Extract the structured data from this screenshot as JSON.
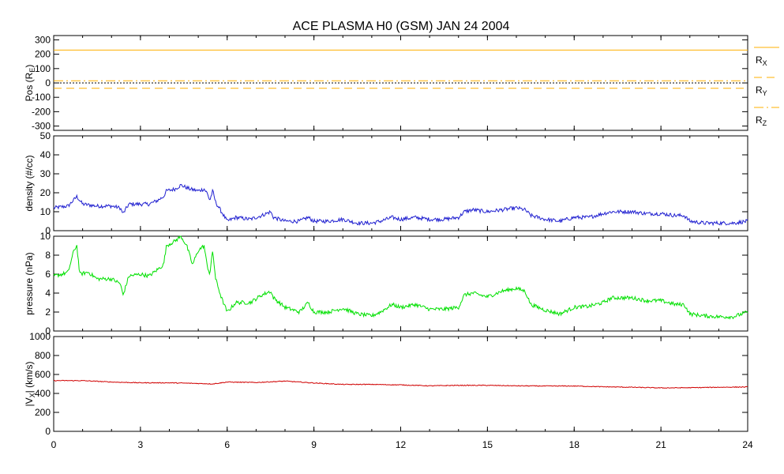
{
  "chart_data": {
    "title": "ACE PLASMA H0 (GSM)   JAN 24 2004",
    "x_axis": {
      "range": [
        0,
        24
      ],
      "ticks": [
        0,
        3,
        6,
        9,
        12,
        15,
        18,
        21,
        24
      ],
      "tick_labels": [
        "0",
        "3",
        "6",
        "9",
        "12",
        "15",
        "18",
        "21",
        "24"
      ]
    },
    "panels": [
      {
        "id": "pos",
        "type": "line",
        "ylabel": "Pos (R<sub>E</sub>)",
        "ylabel_main": "Pos (R",
        "ylabel_sub": "E",
        "ylabel_tail": ")",
        "ylim": [
          -330,
          330
        ],
        "yticks": [
          -300,
          -200,
          -100,
          0,
          100,
          200,
          300
        ],
        "ytick_labels": [
          "-300",
          "-200",
          "-100",
          "0",
          "100",
          "200",
          "300"
        ],
        "zero_line": true,
        "series": [
          {
            "name": "R_X",
            "label_main": "R",
            "label_sub": "X",
            "color": "#ffb000",
            "style": "solid",
            "values": [
              [
                0,
                229
              ],
              [
                24,
                229
              ]
            ]
          },
          {
            "name": "R_Y",
            "label_main": "R",
            "label_sub": "Y",
            "color": "#ffb000",
            "style": "dashed",
            "values": [
              [
                0,
                -37
              ],
              [
                24,
                -37
              ]
            ]
          },
          {
            "name": "R_Z",
            "label_main": "R",
            "label_sub": "Z",
            "color": "#ffb000",
            "style": "dashdot",
            "values": [
              [
                0,
                15
              ],
              [
                24,
                15
              ]
            ]
          }
        ]
      },
      {
        "id": "density",
        "type": "line",
        "ylabel": "density (#/cc)",
        "ylim": [
          0,
          50
        ],
        "yticks": [
          0,
          10,
          20,
          30,
          40,
          50
        ],
        "ytick_labels": [
          "0",
          "10",
          "20",
          "30",
          "40",
          "50"
        ],
        "series": [
          {
            "color": "#2020d0",
            "values": [
              [
                0,
                12
              ],
              [
                0.5,
                13
              ],
              [
                0.8,
                18
              ],
              [
                1.0,
                14
              ],
              [
                1.5,
                13
              ],
              [
                2.0,
                13
              ],
              [
                2.3,
                12
              ],
              [
                2.4,
                9
              ],
              [
                2.6,
                14
              ],
              [
                3.0,
                14
              ],
              [
                3.3,
                14
              ],
              [
                3.6,
                16
              ],
              [
                3.8,
                18
              ],
              [
                3.9,
                21
              ],
              [
                4.2,
                22
              ],
              [
                4.4,
                24
              ],
              [
                4.7,
                22
              ],
              [
                5.0,
                21
              ],
              [
                5.2,
                22
              ],
              [
                5.3,
                20
              ],
              [
                5.4,
                16
              ],
              [
                5.5,
                21
              ],
              [
                5.6,
                15
              ],
              [
                5.8,
                10
              ],
              [
                6.0,
                5
              ],
              [
                6.3,
                7
              ],
              [
                6.8,
                6
              ],
              [
                7.2,
                8
              ],
              [
                7.5,
                10
              ],
              [
                7.6,
                7
              ],
              [
                8.0,
                5
              ],
              [
                8.5,
                5
              ],
              [
                8.8,
                7
              ],
              [
                9.0,
                5
              ],
              [
                9.5,
                5
              ],
              [
                10.0,
                6
              ],
              [
                10.5,
                4
              ],
              [
                11.0,
                4
              ],
              [
                11.3,
                5
              ],
              [
                11.7,
                7
              ],
              [
                12.0,
                6
              ],
              [
                12.5,
                7
              ],
              [
                13.0,
                6
              ],
              [
                13.5,
                6
              ],
              [
                14.0,
                7
              ],
              [
                14.2,
                10
              ],
              [
                14.5,
                11
              ],
              [
                15.0,
                10
              ],
              [
                15.5,
                11
              ],
              [
                16.0,
                12
              ],
              [
                16.3,
                11
              ],
              [
                16.5,
                8
              ],
              [
                17.0,
                6
              ],
              [
                17.5,
                5
              ],
              [
                18.0,
                7
              ],
              [
                18.5,
                7
              ],
              [
                19.0,
                9
              ],
              [
                19.3,
                10
              ],
              [
                20.0,
                10
              ],
              [
                20.5,
                9
              ],
              [
                21.0,
                9
              ],
              [
                21.5,
                8
              ],
              [
                21.8,
                8
              ],
              [
                22.0,
                5
              ],
              [
                22.5,
                4
              ],
              [
                23.0,
                4
              ],
              [
                23.5,
                4
              ],
              [
                24,
                5
              ]
            ]
          }
        ]
      },
      {
        "id": "pressure",
        "type": "line",
        "ylabel": "pressure (nPa)",
        "ylim": [
          0,
          10
        ],
        "yticks": [
          0,
          2,
          4,
          6,
          8,
          10
        ],
        "ytick_labels": [
          "0",
          "2",
          "4",
          "6",
          "8",
          "10"
        ],
        "series": [
          {
            "color": "#00e000",
            "values": [
              [
                0,
                5.8
              ],
              [
                0.3,
                6.0
              ],
              [
                0.5,
                6.2
              ],
              [
                0.7,
                8.5
              ],
              [
                0.8,
                9.0
              ],
              [
                0.9,
                6.0
              ],
              [
                1.2,
                6.2
              ],
              [
                1.5,
                5.5
              ],
              [
                2.0,
                5.5
              ],
              [
                2.3,
                5.0
              ],
              [
                2.4,
                3.8
              ],
              [
                2.6,
                5.8
              ],
              [
                3.0,
                6.0
              ],
              [
                3.3,
                5.8
              ],
              [
                3.6,
                6.5
              ],
              [
                3.8,
                7.0
              ],
              [
                3.9,
                9.0
              ],
              [
                4.2,
                9.5
              ],
              [
                4.4,
                10.0
              ],
              [
                4.6,
                9.0
              ],
              [
                4.8,
                7.0
              ],
              [
                5.0,
                8.5
              ],
              [
                5.2,
                9.0
              ],
              [
                5.3,
                7.0
              ],
              [
                5.4,
                6.0
              ],
              [
                5.5,
                8.5
              ],
              [
                5.6,
                5.5
              ],
              [
                5.8,
                3.5
              ],
              [
                6.0,
                2.0
              ],
              [
                6.3,
                3.0
              ],
              [
                6.8,
                3.0
              ],
              [
                7.2,
                3.8
              ],
              [
                7.5,
                4.2
              ],
              [
                7.6,
                3.5
              ],
              [
                8.0,
                2.5
              ],
              [
                8.5,
                2.0
              ],
              [
                8.8,
                3.0
              ],
              [
                9.0,
                2.0
              ],
              [
                9.5,
                2.0
              ],
              [
                10.0,
                2.4
              ],
              [
                10.5,
                1.8
              ],
              [
                11.0,
                1.6
              ],
              [
                11.3,
                2.0
              ],
              [
                11.7,
                2.8
              ],
              [
                12.0,
                2.5
              ],
              [
                12.5,
                2.8
              ],
              [
                13.0,
                2.3
              ],
              [
                13.5,
                2.3
              ],
              [
                14.0,
                2.5
              ],
              [
                14.2,
                3.8
              ],
              [
                14.5,
                4.0
              ],
              [
                15.0,
                3.6
              ],
              [
                15.5,
                4.2
              ],
              [
                16.0,
                4.5
              ],
              [
                16.3,
                4.2
              ],
              [
                16.5,
                2.8
              ],
              [
                17.0,
                2.2
              ],
              [
                17.5,
                1.8
              ],
              [
                18.0,
                2.5
              ],
              [
                18.5,
                2.6
              ],
              [
                19.0,
                3.0
              ],
              [
                19.3,
                3.5
              ],
              [
                20.0,
                3.5
              ],
              [
                20.5,
                3.2
              ],
              [
                21.0,
                3.2
              ],
              [
                21.5,
                2.8
              ],
              [
                21.8,
                2.8
              ],
              [
                22.0,
                1.8
              ],
              [
                22.5,
                1.6
              ],
              [
                23.0,
                1.5
              ],
              [
                23.5,
                1.5
              ],
              [
                24,
                2.0
              ]
            ]
          }
        ]
      },
      {
        "id": "vx",
        "type": "line",
        "ylabel": "|V_X| (km/s)",
        "ylabel_main": "|V",
        "ylabel_sub": "X",
        "ylabel_tail": "| (km/s)",
        "ylim": [
          0,
          1000
        ],
        "yticks": [
          0,
          200,
          400,
          600,
          800,
          1000
        ],
        "ytick_labels": [
          "0",
          "200",
          "400",
          "600",
          "800",
          "1000"
        ],
        "series": [
          {
            "color": "#d00000",
            "values": [
              [
                0,
                535
              ],
              [
                1,
                535
              ],
              [
                2,
                520
              ],
              [
                3,
                512
              ],
              [
                4,
                512
              ],
              [
                5,
                505
              ],
              [
                5.5,
                500
              ],
              [
                6,
                520
              ],
              [
                7,
                515
              ],
              [
                8,
                530
              ],
              [
                9,
                510
              ],
              [
                10,
                495
              ],
              [
                11,
                495
              ],
              [
                12,
                490
              ],
              [
                13,
                480
              ],
              [
                14,
                485
              ],
              [
                15,
                485
              ],
              [
                16,
                480
              ],
              [
                17,
                478
              ],
              [
                18,
                478
              ],
              [
                19,
                470
              ],
              [
                20,
                465
              ],
              [
                21,
                458
              ],
              [
                22,
                460
              ],
              [
                23,
                465
              ],
              [
                24,
                468
              ]
            ]
          }
        ]
      }
    ]
  }
}
